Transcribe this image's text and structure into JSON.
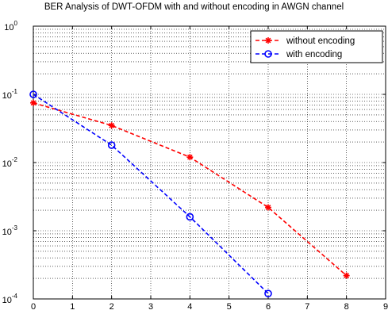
{
  "chart_data": {
    "type": "line",
    "title": "BER Analysis of DWT-OFDM with and without encoding in AWGN channel",
    "xlabel": "",
    "ylabel": "",
    "xlim": [
      0,
      9
    ],
    "ylim": [
      0.0001,
      1
    ],
    "yscale": "log",
    "x_ticks": [
      "0",
      "1",
      "2",
      "3",
      "4",
      "5",
      "6",
      "7",
      "8",
      "9"
    ],
    "y_ticks": [
      {
        "base": "10",
        "exp": "0"
      },
      {
        "base": "10",
        "exp": "-1"
      },
      {
        "base": "10",
        "exp": "-2"
      },
      {
        "base": "10",
        "exp": "-3"
      },
      {
        "base": "10",
        "exp": "-4"
      }
    ],
    "grid": true,
    "legend_position": "top-right",
    "series": [
      {
        "name": "without encoding",
        "color": "#ff0000",
        "marker": "star",
        "line_style": "dashed",
        "x": [
          0,
          2,
          4,
          6,
          8
        ],
        "y": [
          0.075,
          0.035,
          0.012,
          0.0022,
          0.00022
        ]
      },
      {
        "name": "with encoding",
        "color": "#0000ff",
        "marker": "circle",
        "line_style": "dashed",
        "x": [
          0,
          2,
          4,
          6
        ],
        "y": [
          0.1,
          0.018,
          0.0016,
          0.00012
        ]
      }
    ]
  }
}
